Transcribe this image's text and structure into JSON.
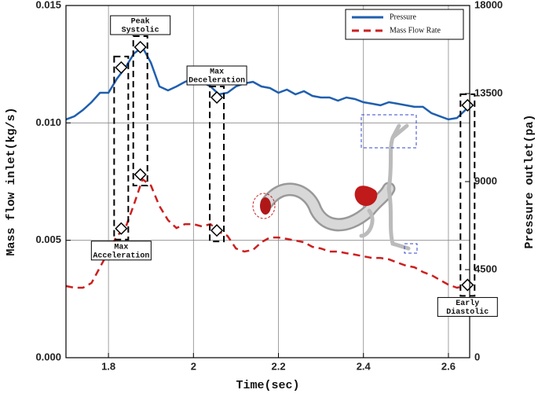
{
  "chart_data": {
    "type": "line",
    "xlabel": "Time(sec)",
    "ylabel": "Mass flow inlet(kg/s)",
    "y2label": "Pressure outlet(pa)",
    "xlim": [
      1.7,
      2.65
    ],
    "xticks": [
      1.8,
      2,
      2.2,
      2.4,
      2.6
    ],
    "ylim": [
      0,
      0.015
    ],
    "yticks": [
      {
        "value": 0,
        "label": "0.000"
      },
      {
        "value": 0.005,
        "label": "0.005"
      },
      {
        "value": 0.01,
        "label": "0.010"
      },
      {
        "value": 0.015,
        "label": "0.015"
      }
    ],
    "y2lim": [
      0,
      18000
    ],
    "y2ticks": [
      0,
      4500,
      9000,
      13500,
      18000
    ],
    "grid": true,
    "legend": "upper right",
    "x": [
      1.7,
      1.72,
      1.74,
      1.76,
      1.78,
      1.8,
      1.82,
      1.84,
      1.86,
      1.88,
      1.9,
      1.92,
      1.94,
      1.96,
      1.98,
      2.0,
      2.02,
      2.04,
      2.06,
      2.08,
      2.1,
      2.12,
      2.14,
      2.16,
      2.18,
      2.2,
      2.22,
      2.24,
      2.26,
      2.28,
      2.3,
      2.32,
      2.34,
      2.36,
      2.38,
      2.4,
      2.42,
      2.44,
      2.46,
      2.48,
      2.5,
      2.52,
      2.54,
      2.56,
      2.58,
      2.6,
      2.62,
      2.64,
      2.65
    ],
    "series": [
      {
        "name": "Pressure",
        "color": "#1f5fb0",
        "axis": "y2",
        "line_style": "solid",
        "values": [
          12180,
          12340,
          12660,
          13060,
          13540,
          13540,
          14260,
          14830,
          15550,
          15870,
          15070,
          13860,
          13660,
          13860,
          14100,
          14260,
          14100,
          13860,
          13460,
          13540,
          13860,
          14020,
          14100,
          13860,
          13780,
          13540,
          13700,
          13460,
          13620,
          13380,
          13300,
          13300,
          13140,
          13300,
          13220,
          13060,
          12980,
          12900,
          13060,
          12980,
          12900,
          12820,
          12820,
          12500,
          12340,
          12180,
          12250,
          12660,
          12900
        ]
      },
      {
        "name": "Mass Flow Rate",
        "color": "#cc1f1f",
        "axis": "y",
        "line_style": "dashed",
        "values": [
          0.00305,
          0.00298,
          0.00298,
          0.00318,
          0.00385,
          0.00452,
          0.00519,
          0.00552,
          0.00653,
          0.0076,
          0.00733,
          0.00646,
          0.00586,
          0.00552,
          0.00569,
          0.00569,
          0.00559,
          0.00569,
          0.00536,
          0.00519,
          0.00465,
          0.00452,
          0.00459,
          0.00492,
          0.00512,
          0.00512,
          0.00506,
          0.00499,
          0.00492,
          0.00472,
          0.00465,
          0.00452,
          0.00452,
          0.00445,
          0.00439,
          0.00432,
          0.00425,
          0.00425,
          0.00419,
          0.00405,
          0.00392,
          0.00385,
          0.00365,
          0.00352,
          0.00331,
          0.00311,
          0.00298,
          0.00305,
          0.00305
        ]
      }
    ],
    "annotations": [
      {
        "text": [
          "Max",
          "Acceleration"
        ],
        "x": 1.83,
        "pressure": 14830,
        "mass_flow": 0.0055,
        "position": "below"
      },
      {
        "text": [
          "Peak",
          "Systolic"
        ],
        "x": 1.875,
        "pressure": 15870,
        "mass_flow": 0.0078,
        "position": "above"
      },
      {
        "text": [
          "Max",
          "Deceleration"
        ],
        "x": 2.055,
        "pressure": 13300,
        "mass_flow": 0.00542,
        "position": "above"
      },
      {
        "text": [
          "Early",
          "Diastolic"
        ],
        "x": 2.645,
        "pressure": 12900,
        "mass_flow": 0.0031,
        "position": "below"
      }
    ]
  }
}
